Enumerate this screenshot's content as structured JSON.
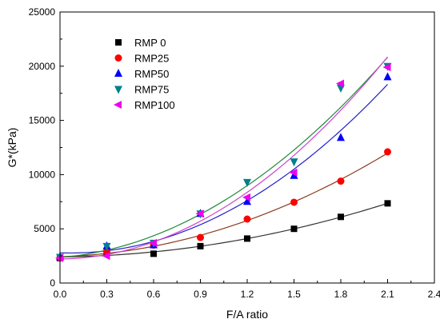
{
  "chart_data": {
    "type": "scatter",
    "xlabel": "F/A ratio",
    "ylabel": "G*(kPa)",
    "xlim": [
      0.0,
      2.4
    ],
    "ylim": [
      0,
      25000
    ],
    "x_ticks": [
      "0.0",
      "0.3",
      "0.6",
      "0.9",
      "1.2",
      "1.5",
      "1.8",
      "2.1",
      "2.4"
    ],
    "y_ticks": [
      "0",
      "5000",
      "10000",
      "15000",
      "20000",
      "25000"
    ],
    "grid": false,
    "legend_position": "top-left",
    "x": [
      0.0,
      0.3,
      0.6,
      0.9,
      1.2,
      1.5,
      1.8,
      2.1
    ],
    "series": [
      {
        "name": "RMP 0",
        "marker": "square",
        "color": "#000000",
        "fit_color": "#333333",
        "values": [
          2300,
          2800,
          2700,
          3400,
          4100,
          5000,
          6100,
          7350
        ]
      },
      {
        "name": "RMP25",
        "marker": "circle",
        "color": "#ff0000",
        "fit_color": "#8b3a1a",
        "values": [
          2300,
          2900,
          3500,
          4200,
          5900,
          7450,
          9400,
          12100
        ]
      },
      {
        "name": "RMP50",
        "marker": "triangle-up",
        "color": "#0000ff",
        "fit_color": "#2222cc",
        "values": [
          2400,
          3400,
          3500,
          6400,
          7500,
          9900,
          13400,
          19000
        ]
      },
      {
        "name": "RMP75",
        "marker": "triangle-down",
        "color": "#00808b",
        "fit_color": "#1f8a3a",
        "values": [
          2400,
          3400,
          3700,
          6400,
          9300,
          11200,
          18000,
          20000
        ]
      },
      {
        "name": "RMP100",
        "marker": "triangle-left",
        "color": "#ee00ee",
        "fit_color": "#cc44cc",
        "values": [
          2300,
          2500,
          3700,
          6400,
          7900,
          10200,
          18400,
          19900
        ]
      }
    ]
  }
}
